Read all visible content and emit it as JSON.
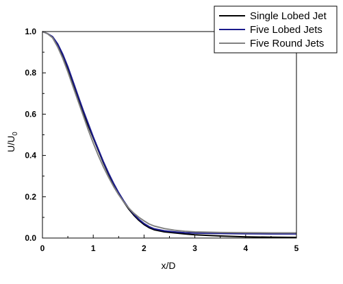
{
  "chart_data": {
    "type": "line",
    "xlabel": "x/D",
    "ylabel": {
      "main": "U/U",
      "subscript": "0"
    },
    "xlim": [
      0,
      5
    ],
    "ylim": [
      0,
      1.0
    ],
    "x_ticks": [
      "0",
      "1",
      "2",
      "3",
      "4",
      "5"
    ],
    "y_ticks": [
      "0.0",
      "0.2",
      "0.4",
      "0.6",
      "0.8",
      "1.0"
    ],
    "grid": false,
    "legend_position": "top-right",
    "series": [
      {
        "name": "Single Lobed Jet",
        "color": "#000000",
        "points": [
          [
            0,
            1.0
          ],
          [
            0.1,
            0.99
          ],
          [
            0.2,
            0.97
          ],
          [
            0.3,
            0.93
          ],
          [
            0.4,
            0.88
          ],
          [
            0.5,
            0.82
          ],
          [
            0.6,
            0.75
          ],
          [
            0.7,
            0.68
          ],
          [
            0.8,
            0.61
          ],
          [
            0.9,
            0.545
          ],
          [
            1.0,
            0.485
          ],
          [
            1.1,
            0.425
          ],
          [
            1.2,
            0.365
          ],
          [
            1.3,
            0.31
          ],
          [
            1.4,
            0.26
          ],
          [
            1.5,
            0.215
          ],
          [
            1.6,
            0.175
          ],
          [
            1.7,
            0.14
          ],
          [
            1.8,
            0.11
          ],
          [
            1.9,
            0.085
          ],
          [
            2.0,
            0.065
          ],
          [
            2.1,
            0.05
          ],
          [
            2.2,
            0.04
          ],
          [
            2.4,
            0.03
          ],
          [
            2.6,
            0.025
          ],
          [
            2.8,
            0.02
          ],
          [
            3.0,
            0.016
          ],
          [
            3.5,
            0.01
          ],
          [
            4.0,
            0.006
          ],
          [
            4.5,
            0.004
          ],
          [
            5.0,
            0.003
          ]
        ]
      },
      {
        "name": "Five Lobed Jets",
        "color": "#1a1a8c",
        "points": [
          [
            0,
            1.0
          ],
          [
            0.1,
            0.99
          ],
          [
            0.2,
            0.975
          ],
          [
            0.3,
            0.94
          ],
          [
            0.4,
            0.89
          ],
          [
            0.5,
            0.83
          ],
          [
            0.6,
            0.76
          ],
          [
            0.7,
            0.69
          ],
          [
            0.8,
            0.62
          ],
          [
            0.9,
            0.555
          ],
          [
            1.0,
            0.49
          ],
          [
            1.1,
            0.43
          ],
          [
            1.2,
            0.37
          ],
          [
            1.3,
            0.315
          ],
          [
            1.4,
            0.265
          ],
          [
            1.5,
            0.22
          ],
          [
            1.6,
            0.18
          ],
          [
            1.7,
            0.145
          ],
          [
            1.8,
            0.115
          ],
          [
            1.9,
            0.09
          ],
          [
            2.0,
            0.07
          ],
          [
            2.1,
            0.055
          ],
          [
            2.2,
            0.045
          ],
          [
            2.4,
            0.035
          ],
          [
            2.6,
            0.03
          ],
          [
            2.8,
            0.026
          ],
          [
            3.0,
            0.024
          ],
          [
            3.5,
            0.022
          ],
          [
            4.0,
            0.021
          ],
          [
            4.5,
            0.02
          ],
          [
            5.0,
            0.02
          ]
        ]
      },
      {
        "name": "Five Round Jets",
        "color": "#808080",
        "points": [
          [
            0,
            1.0
          ],
          [
            0.1,
            0.99
          ],
          [
            0.2,
            0.97
          ],
          [
            0.3,
            0.925
          ],
          [
            0.4,
            0.87
          ],
          [
            0.5,
            0.805
          ],
          [
            0.6,
            0.735
          ],
          [
            0.7,
            0.665
          ],
          [
            0.8,
            0.595
          ],
          [
            0.9,
            0.525
          ],
          [
            1.0,
            0.46
          ],
          [
            1.1,
            0.4
          ],
          [
            1.2,
            0.345
          ],
          [
            1.3,
            0.295
          ],
          [
            1.4,
            0.25
          ],
          [
            1.5,
            0.21
          ],
          [
            1.6,
            0.175
          ],
          [
            1.7,
            0.145
          ],
          [
            1.8,
            0.12
          ],
          [
            1.9,
            0.1
          ],
          [
            2.0,
            0.083
          ],
          [
            2.1,
            0.068
          ],
          [
            2.2,
            0.058
          ],
          [
            2.4,
            0.046
          ],
          [
            2.6,
            0.038
          ],
          [
            2.8,
            0.033
          ],
          [
            3.0,
            0.03
          ],
          [
            3.5,
            0.027
          ],
          [
            4.0,
            0.026
          ],
          [
            4.5,
            0.025
          ],
          [
            5.0,
            0.025
          ]
        ]
      }
    ]
  }
}
